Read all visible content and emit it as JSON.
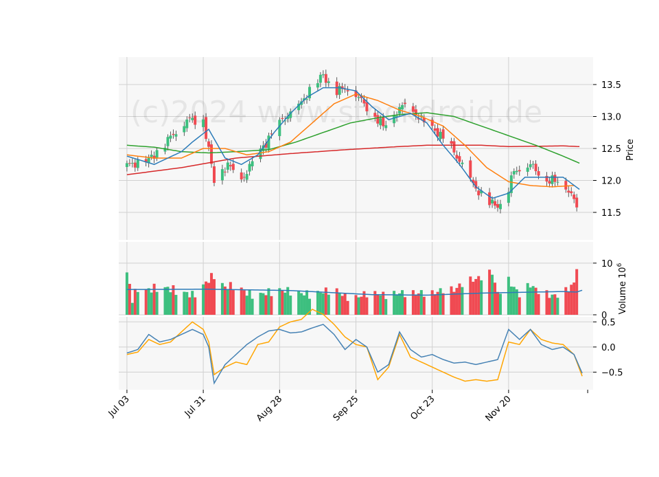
{
  "watermark": "(c)2024 www.stockdroid.de",
  "colors": {
    "up": "#3dbf7f",
    "down": "#f04a52",
    "ma_short": "#2b7bb9",
    "ma_mid": "#ff7f0e",
    "ma_long": "#2ca02c",
    "ma_200": "#d62728",
    "volume_ma": "#2b7bb9",
    "osc_a": "#4682b4",
    "osc_b": "#ffa500",
    "panel_bg": "#f7f7f7",
    "grid": "#d0d0d0"
  },
  "axes": {
    "price_label": "Price",
    "volume_label": "Volume",
    "volume_exponent": "10",
    "volume_exponent_sup": "6",
    "x_tick_labels": [
      "Jul 03",
      "Jul 31",
      "Aug 28",
      "Sep 25",
      "Oct 23",
      "Nov 20"
    ],
    "price_ticks": [
      "11.5",
      "12.0",
      "12.5",
      "13.0",
      "13.5"
    ],
    "volume_ticks": [
      "0",
      "10"
    ],
    "osc_ticks": [
      "−0.5",
      "0.0",
      "0.5"
    ]
  },
  "chart_data": {
    "type": "candlestick",
    "x_range_days": [
      -3,
      171
    ],
    "x_tick_days": [
      0,
      28,
      56,
      84,
      112,
      140
    ],
    "price_ylim": [
      11.07,
      13.93
    ],
    "volume_ylim": [
      0,
      14.1
    ],
    "osc_ylim": [
      -0.85,
      0.6
    ],
    "anchors": {
      "close": [
        [
          0,
          12.24
        ],
        [
          8,
          12.32
        ],
        [
          12,
          12.5
        ],
        [
          22,
          12.95
        ],
        [
          28,
          12.95
        ],
        [
          32,
          12.0
        ],
        [
          37,
          12.25
        ],
        [
          42,
          12.0
        ],
        [
          47,
          12.35
        ],
        [
          52,
          12.65
        ],
        [
          57,
          12.95
        ],
        [
          62,
          13.1
        ],
        [
          67,
          13.4
        ],
        [
          72,
          13.65
        ],
        [
          76,
          13.4
        ],
        [
          82,
          13.45
        ],
        [
          88,
          13.15
        ],
        [
          94,
          12.85
        ],
        [
          102,
          13.2
        ],
        [
          108,
          12.95
        ],
        [
          114,
          12.75
        ],
        [
          120,
          12.45
        ],
        [
          126,
          12.0
        ],
        [
          132,
          11.65
        ],
        [
          138,
          11.6
        ],
        [
          142,
          12.15
        ],
        [
          148,
          12.25
        ],
        [
          154,
          12.0
        ],
        [
          158,
          12.0
        ],
        [
          162,
          11.85
        ],
        [
          165,
          11.6
        ],
        [
          167,
          11.35
        ]
      ],
      "volume": [
        [
          0,
          8.2
        ],
        [
          2,
          3.0
        ],
        [
          4,
          5.3
        ],
        [
          8,
          4.8
        ],
        [
          12,
          5.5
        ],
        [
          16,
          5.0
        ],
        [
          20,
          4.5
        ],
        [
          24,
          3.8
        ],
        [
          28,
          5.7
        ],
        [
          32,
          7.8
        ],
        [
          36,
          5.3
        ],
        [
          40,
          5.8
        ],
        [
          44,
          4.2
        ],
        [
          48,
          3.8
        ],
        [
          52,
          4.4
        ],
        [
          56,
          4.8
        ],
        [
          60,
          4.6
        ],
        [
          64,
          4.2
        ],
        [
          68,
          3.9
        ],
        [
          72,
          4.5
        ],
        [
          76,
          5.0
        ],
        [
          80,
          3.6
        ],
        [
          84,
          3.3
        ],
        [
          88,
          4.2
        ],
        [
          92,
          4.0
        ],
        [
          96,
          3.8
        ],
        [
          100,
          4.3
        ],
        [
          104,
          4.1
        ],
        [
          108,
          4.3
        ],
        [
          112,
          4.1
        ],
        [
          116,
          4.9
        ],
        [
          120,
          4.8
        ],
        [
          124,
          6.5
        ],
        [
          128,
          6.9
        ],
        [
          132,
          7.8
        ],
        [
          134,
          8.2
        ],
        [
          136,
          4.1
        ],
        [
          140,
          6.6
        ],
        [
          144,
          4.0
        ],
        [
          148,
          5.8
        ],
        [
          152,
          4.2
        ],
        [
          156,
          3.7
        ],
        [
          160,
          4.0
        ],
        [
          164,
          6.1
        ],
        [
          166,
          12.6
        ],
        [
          167,
          11.8
        ]
      ],
      "vol_ma": [
        [
          0,
          4.9
        ],
        [
          30,
          4.95
        ],
        [
          60,
          4.7
        ],
        [
          90,
          3.9
        ],
        [
          110,
          3.8
        ],
        [
          130,
          4.2
        ],
        [
          150,
          4.4
        ],
        [
          160,
          4.5
        ],
        [
          165,
          4.4
        ],
        [
          167,
          4.75
        ]
      ],
      "osc_a": [
        [
          0,
          -0.12
        ],
        [
          4,
          -0.05
        ],
        [
          8,
          0.25
        ],
        [
          12,
          0.1
        ],
        [
          16,
          0.15
        ],
        [
          20,
          0.25
        ],
        [
          24,
          0.35
        ],
        [
          28,
          0.25
        ],
        [
          30,
          0.0
        ],
        [
          32,
          -0.72
        ],
        [
          36,
          -0.35
        ],
        [
          40,
          -0.15
        ],
        [
          44,
          0.05
        ],
        [
          48,
          0.2
        ],
        [
          52,
          0.32
        ],
        [
          56,
          0.35
        ],
        [
          60,
          0.28
        ],
        [
          64,
          0.3
        ],
        [
          68,
          0.38
        ],
        [
          72,
          0.45
        ],
        [
          76,
          0.25
        ],
        [
          80,
          -0.05
        ],
        [
          84,
          0.15
        ],
        [
          88,
          0.0
        ],
        [
          92,
          -0.5
        ],
        [
          96,
          -0.35
        ],
        [
          100,
          0.3
        ],
        [
          104,
          -0.05
        ],
        [
          108,
          -0.2
        ],
        [
          112,
          -0.15
        ],
        [
          116,
          -0.25
        ],
        [
          120,
          -0.32
        ],
        [
          124,
          -0.3
        ],
        [
          128,
          -0.35
        ],
        [
          132,
          -0.3
        ],
        [
          136,
          -0.25
        ],
        [
          140,
          0.35
        ],
        [
          144,
          0.15
        ],
        [
          148,
          0.35
        ],
        [
          152,
          0.05
        ],
        [
          156,
          -0.05
        ],
        [
          160,
          0.0
        ],
        [
          164,
          -0.15
        ],
        [
          167,
          -0.52
        ]
      ],
      "osc_b": [
        [
          0,
          -0.15
        ],
        [
          4,
          -0.1
        ],
        [
          8,
          0.15
        ],
        [
          12,
          0.05
        ],
        [
          16,
          0.1
        ],
        [
          20,
          0.3
        ],
        [
          24,
          0.5
        ],
        [
          28,
          0.35
        ],
        [
          30,
          0.1
        ],
        [
          32,
          -0.55
        ],
        [
          36,
          -0.4
        ],
        [
          40,
          -0.3
        ],
        [
          44,
          -0.35
        ],
        [
          48,
          0.05
        ],
        [
          52,
          0.1
        ],
        [
          56,
          0.4
        ],
        [
          60,
          0.5
        ],
        [
          64,
          0.55
        ],
        [
          68,
          0.75
        ],
        [
          72,
          0.65
        ],
        [
          76,
          0.45
        ],
        [
          80,
          0.2
        ],
        [
          84,
          0.05
        ],
        [
          88,
          0.0
        ],
        [
          92,
          -0.65
        ],
        [
          96,
          -0.4
        ],
        [
          100,
          0.25
        ],
        [
          104,
          -0.2
        ],
        [
          108,
          -0.3
        ],
        [
          112,
          -0.4
        ],
        [
          116,
          -0.5
        ],
        [
          120,
          -0.6
        ],
        [
          124,
          -0.68
        ],
        [
          128,
          -0.65
        ],
        [
          132,
          -0.68
        ],
        [
          136,
          -0.65
        ],
        [
          140,
          0.1
        ],
        [
          144,
          0.05
        ],
        [
          148,
          0.35
        ],
        [
          152,
          0.15
        ],
        [
          156,
          0.08
        ],
        [
          160,
          0.05
        ],
        [
          164,
          -0.15
        ],
        [
          167,
          -0.58
        ]
      ]
    },
    "ma_short": [
      [
        0,
        12.38
      ],
      [
        10,
        12.25
      ],
      [
        20,
        12.45
      ],
      [
        24,
        12.6
      ],
      [
        30,
        12.8
      ],
      [
        36,
        12.35
      ],
      [
        42,
        12.25
      ],
      [
        48,
        12.4
      ],
      [
        54,
        12.75
      ],
      [
        60,
        13.05
      ],
      [
        66,
        13.3
      ],
      [
        72,
        13.45
      ],
      [
        78,
        13.45
      ],
      [
        84,
        13.4
      ],
      [
        90,
        13.15
      ],
      [
        96,
        12.95
      ],
      [
        104,
        13.05
      ],
      [
        110,
        12.9
      ],
      [
        116,
        12.55
      ],
      [
        122,
        12.25
      ],
      [
        128,
        11.9
      ],
      [
        134,
        11.72
      ],
      [
        140,
        11.8
      ],
      [
        146,
        12.05
      ],
      [
        154,
        12.05
      ],
      [
        160,
        12.05
      ],
      [
        166,
        11.86
      ]
    ],
    "ma_mid": [
      [
        0,
        12.4
      ],
      [
        10,
        12.35
      ],
      [
        20,
        12.35
      ],
      [
        28,
        12.5
      ],
      [
        36,
        12.5
      ],
      [
        44,
        12.4
      ],
      [
        52,
        12.45
      ],
      [
        60,
        12.6
      ],
      [
        68,
        12.9
      ],
      [
        76,
        13.2
      ],
      [
        84,
        13.35
      ],
      [
        92,
        13.25
      ],
      [
        100,
        13.1
      ],
      [
        108,
        13.0
      ],
      [
        116,
        12.85
      ],
      [
        124,
        12.55
      ],
      [
        132,
        12.2
      ],
      [
        140,
        11.98
      ],
      [
        148,
        11.92
      ],
      [
        156,
        11.9
      ],
      [
        164,
        11.92
      ]
    ],
    "ma_long": [
      [
        0,
        12.55
      ],
      [
        10,
        12.52
      ],
      [
        20,
        12.45
      ],
      [
        30,
        12.43
      ],
      [
        40,
        12.45
      ],
      [
        52,
        12.48
      ],
      [
        62,
        12.6
      ],
      [
        72,
        12.75
      ],
      [
        82,
        12.9
      ],
      [
        92,
        12.98
      ],
      [
        100,
        13.03
      ],
      [
        110,
        13.06
      ],
      [
        120,
        13.0
      ],
      [
        130,
        12.85
      ],
      [
        140,
        12.7
      ],
      [
        150,
        12.55
      ],
      [
        160,
        12.38
      ],
      [
        166,
        12.27
      ]
    ],
    "ma_200": [
      [
        0,
        12.09
      ],
      [
        20,
        12.2
      ],
      [
        40,
        12.35
      ],
      [
        60,
        12.42
      ],
      [
        80,
        12.48
      ],
      [
        100,
        12.53
      ],
      [
        110,
        12.55
      ],
      [
        130,
        12.55
      ],
      [
        140,
        12.53
      ],
      [
        160,
        12.54
      ],
      [
        166,
        12.53
      ]
    ]
  }
}
